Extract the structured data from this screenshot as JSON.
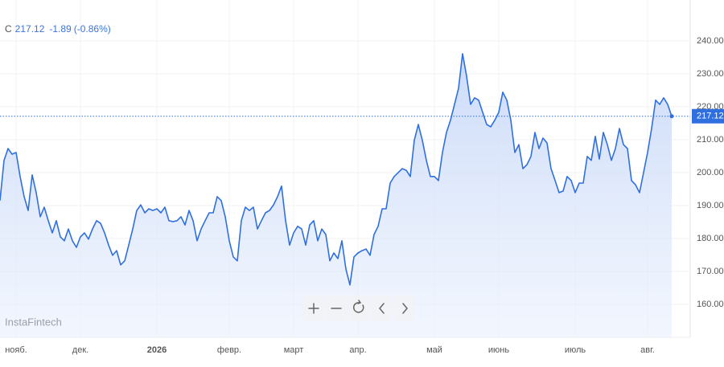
{
  "chart_data": {
    "type": "area",
    "ticker": "C",
    "last": 217.12,
    "change": -1.89,
    "change_pct": "(-0.86%)",
    "watermark": "InstaFintech",
    "last_price": 217.12,
    "color": "#2f6fe0",
    "grid": true,
    "ylim": [
      150,
      252.4
    ],
    "yticks": [
      {
        "value": 160,
        "label": "160.00"
      },
      {
        "value": 170,
        "label": "170.00"
      },
      {
        "value": 180,
        "label": "180.00"
      },
      {
        "value": 190,
        "label": "190.00"
      },
      {
        "value": 200,
        "label": "200.00"
      },
      {
        "value": 210,
        "label": "210.00"
      },
      {
        "value": 220,
        "label": "220.00"
      },
      {
        "value": 230,
        "label": "230.00"
      },
      {
        "value": 240,
        "label": "240.00"
      }
    ],
    "categories": [
      null,
      null,
      null,
      null,
      "нояб.",
      null,
      null,
      null,
      null,
      null,
      null,
      null,
      null,
      null,
      null,
      null,
      null,
      null,
      null,
      null,
      "дек.",
      null,
      null,
      null,
      null,
      null,
      null,
      null,
      null,
      null,
      null,
      null,
      null,
      null,
      null,
      null,
      null,
      null,
      null,
      "2026",
      null,
      null,
      null,
      null,
      null,
      null,
      null,
      null,
      null,
      null,
      null,
      null,
      null,
      null,
      null,
      null,
      null,
      "февр.",
      null,
      null,
      null,
      null,
      null,
      null,
      null,
      null,
      null,
      null,
      null,
      null,
      null,
      null,
      null,
      "март",
      null,
      null,
      null,
      null,
      null,
      null,
      null,
      null,
      null,
      null,
      null,
      null,
      null,
      null,
      null,
      "апр.",
      null,
      null,
      null,
      null,
      null,
      null,
      null,
      null,
      null,
      null,
      null,
      null,
      null,
      null,
      null,
      null,
      null,
      null,
      "май",
      null,
      null,
      null,
      null,
      null,
      null,
      null,
      null,
      null,
      null,
      null,
      null,
      null,
      null,
      null,
      "июнь",
      null,
      null,
      null,
      null,
      null,
      null,
      null,
      null,
      null,
      null,
      null,
      null,
      null,
      null,
      null,
      null,
      null,
      null,
      "июль",
      null,
      null,
      null,
      null,
      null,
      null,
      null,
      null,
      null,
      null,
      null,
      null,
      null,
      null,
      null,
      null,
      null,
      "авг.",
      null,
      null,
      null,
      null,
      null,
      null
    ],
    "values": [
      191.5,
      203.7,
      207.3,
      205.6,
      206.1,
      198.8,
      192.7,
      188.5,
      199.3,
      193.9,
      186.6,
      189.5,
      185.4,
      181.7,
      185.4,
      180.5,
      179.3,
      182.9,
      179.3,
      177.3,
      180.5,
      181.7,
      179.8,
      182.9,
      185.4,
      184.6,
      181.7,
      178.0,
      174.9,
      176.3,
      172.0,
      173.2,
      178.0,
      182.9,
      188.5,
      190.2,
      187.8,
      189.0,
      188.5,
      189.0,
      187.8,
      189.5,
      185.4,
      185.1,
      185.4,
      186.6,
      184.1,
      188.5,
      185.4,
      179.3,
      182.9,
      185.4,
      187.8,
      187.8,
      192.7,
      191.5,
      186.6,
      179.3,
      174.4,
      173.2,
      185.4,
      189.5,
      188.5,
      189.5,
      182.9,
      185.4,
      187.8,
      188.5,
      190.2,
      192.7,
      195.9,
      185.4,
      178.0,
      181.7,
      183.7,
      182.9,
      178.0,
      184.1,
      185.4,
      179.3,
      182.9,
      181.2,
      173.2,
      175.6,
      173.9,
      179.3,
      170.7,
      165.9,
      174.4,
      175.6,
      176.3,
      176.8,
      174.9,
      181.2,
      183.7,
      189.0,
      189.0,
      196.8,
      198.8,
      200.0,
      201.2,
      200.7,
      198.8,
      209.8,
      214.6,
      209.8,
      203.7,
      198.8,
      198.8,
      197.6,
      206.1,
      212.2,
      215.9,
      220.7,
      225.6,
      236.1,
      229.3,
      220.7,
      222.7,
      222.0,
      218.3,
      214.6,
      213.9,
      215.9,
      218.3,
      224.4,
      222.0,
      215.9,
      206.1,
      208.5,
      201.2,
      202.4,
      204.9,
      212.2,
      207.3,
      210.5,
      209.0,
      201.2,
      197.6,
      193.9,
      194.4,
      198.8,
      197.6,
      193.9,
      196.8,
      196.8,
      204.9,
      203.7,
      211.0,
      204.1,
      212.2,
      208.5,
      203.7,
      207.3,
      213.4,
      208.5,
      207.3,
      197.6,
      196.3,
      193.9,
      200.0,
      206.1,
      213.4,
      222.0,
      220.7,
      222.7,
      220.7,
      217.12
    ]
  }
}
